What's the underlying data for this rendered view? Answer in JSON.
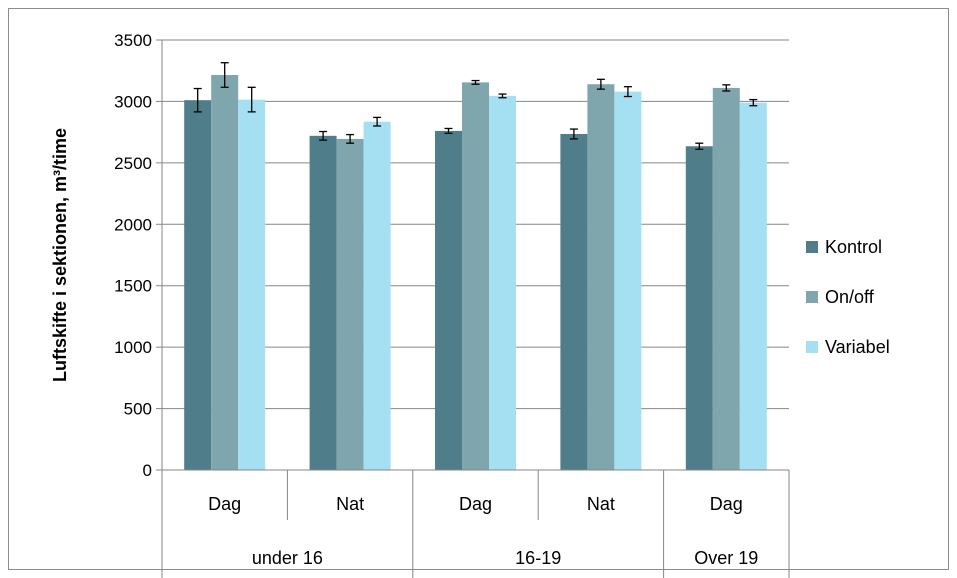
{
  "chart_data": {
    "type": "bar",
    "ylabel": "Luftskifte i sektionen, m³/time",
    "ylim": [
      0,
      3500
    ],
    "yticks": [
      0,
      500,
      1000,
      1500,
      2000,
      2500,
      3000,
      3500
    ],
    "grid": true,
    "legend_position": "right",
    "categories": [
      {
        "sub": "Dag",
        "group": "under 16"
      },
      {
        "sub": "Nat",
        "group": "under 16"
      },
      {
        "sub": "Dag",
        "group": "16-19"
      },
      {
        "sub": "Nat",
        "group": "16-19"
      },
      {
        "sub": "Dag",
        "group": "Over 19"
      }
    ],
    "groups": [
      {
        "label": "under 16",
        "span": 2
      },
      {
        "label": "16-19",
        "span": 2
      },
      {
        "label": "Over 19",
        "span": 1
      }
    ],
    "series": [
      {
        "name": "Kontrol",
        "color": "#4f7d8a",
        "values": [
          3010,
          2720,
          2760,
          2735,
          2635
        ],
        "errors": [
          95,
          35,
          20,
          40,
          25
        ]
      },
      {
        "name": "On/off",
        "color": "#7fa6ad",
        "values": [
          3215,
          2695,
          3155,
          3140,
          3110
        ],
        "errors": [
          100,
          35,
          15,
          40,
          25
        ]
      },
      {
        "name": "Variabel",
        "color": "#a5dff2",
        "values": [
          3015,
          2835,
          3045,
          3080,
          2990
        ],
        "errors": [
          100,
          35,
          15,
          40,
          25
        ]
      }
    ]
  }
}
